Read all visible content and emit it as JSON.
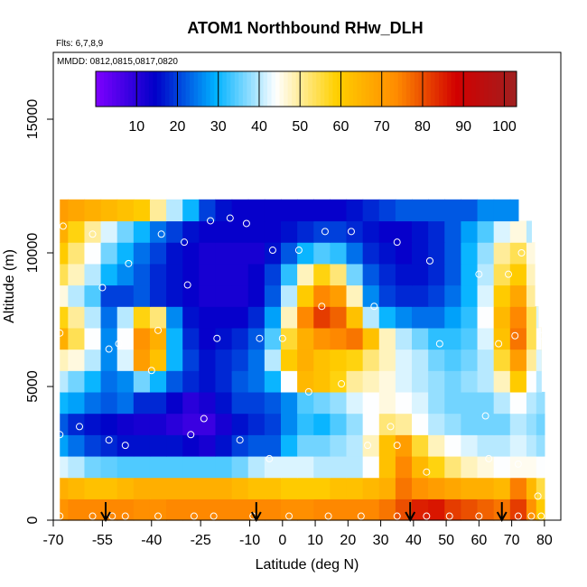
{
  "chart_data": {
    "type": "heatmap",
    "title": "ATOM1 Northbound RHw_DLH",
    "annotations": {
      "flights": "Flts: 6,7,8,9",
      "dates": "MMDD: 0812,0815,0817,0820"
    },
    "xlabel": "Latitude (deg N)",
    "ylabel": "Altitude (m)",
    "xlim": [
      -70,
      85
    ],
    "ylim": [
      0,
      17500
    ],
    "x_ticks": [
      -70,
      -55,
      -40,
      -25,
      -10,
      0,
      10,
      20,
      30,
      40,
      50,
      60,
      70,
      80
    ],
    "x_tick_labels": [
      "-70",
      "-55",
      "-40",
      "-25",
      "-10",
      "0",
      "10",
      "20",
      "30",
      "40",
      "50",
      "60",
      "70",
      "80"
    ],
    "y_ticks": [
      0,
      5000,
      10000,
      15000
    ],
    "y_tick_labels": [
      "0",
      "5000",
      "10000",
      "15000"
    ],
    "colorbar": {
      "range": [
        0,
        103
      ],
      "ticks": [
        10,
        20,
        30,
        40,
        50,
        60,
        70,
        80,
        90,
        100
      ],
      "tick_labels": [
        "10",
        "20",
        "30",
        "40",
        "50",
        "60",
        "70",
        "80",
        "90",
        "100"
      ],
      "colors": [
        "#7f00ff",
        "#0000c8",
        "#00b2ff",
        "#ffffff",
        "#ffd000",
        "#ff8c00",
        "#d20000",
        "#a02020"
      ]
    },
    "profile_markers_lat": [
      -54,
      -8,
      39,
      67
    ],
    "grid_lat": [
      -68,
      -63,
      -58,
      -53,
      -48,
      -43,
      -38,
      -33,
      -28,
      -23,
      -18,
      -13,
      -8,
      -3,
      2,
      7,
      12,
      17,
      22,
      27,
      32,
      37,
      42,
      47,
      52,
      57,
      62,
      67,
      72,
      77,
      80
    ],
    "grid_alt": [
      0,
      800,
      1600,
      2400,
      3200,
      4000,
      4800,
      5600,
      6400,
      7200,
      8000,
      8800,
      9600,
      10400,
      11200
    ],
    "cells": [
      [
        72,
        74,
        74,
        74,
        74,
        73,
        73,
        74,
        74,
        74,
        74,
        74,
        74,
        74,
        73,
        73,
        74,
        74,
        74,
        74,
        76,
        80,
        85,
        86,
        82,
        80,
        78,
        76,
        82,
        72,
        60
      ],
      [
        66,
        64,
        62,
        62,
        64,
        66,
        66,
        66,
        66,
        66,
        66,
        64,
        62,
        62,
        60,
        60,
        60,
        62,
        62,
        64,
        66,
        76,
        72,
        70,
        68,
        66,
        66,
        64,
        75,
        64,
        55
      ],
      [
        42,
        40,
        36,
        35,
        34,
        34,
        34,
        34,
        34,
        34,
        34,
        36,
        40,
        42,
        42,
        42,
        40,
        40,
        40,
        44,
        62,
        74,
        64,
        58,
        52,
        48,
        46,
        44,
        45,
        45,
        44
      ],
      [
        28,
        24,
        20,
        18,
        16,
        16,
        16,
        16,
        14,
        12,
        16,
        20,
        22,
        22,
        30,
        36,
        36,
        38,
        40,
        48,
        62,
        70,
        56,
        48,
        44,
        42,
        40,
        40,
        42,
        40,
        38
      ],
      [
        22,
        18,
        16,
        15,
        13,
        12,
        12,
        10,
        8,
        8,
        12,
        16,
        18,
        20,
        26,
        32,
        30,
        34,
        38,
        44,
        52,
        50,
        44,
        40,
        38,
        36,
        36,
        36,
        40,
        38,
        36
      ],
      [
        30,
        28,
        24,
        22,
        24,
        18,
        18,
        14,
        10,
        12,
        16,
        20,
        20,
        22,
        26,
        34,
        36,
        38,
        42,
        44,
        46,
        44,
        42,
        38,
        36,
        36,
        36,
        40,
        44,
        40,
        38
      ],
      [
        40,
        36,
        30,
        24,
        26,
        36,
        30,
        22,
        18,
        16,
        18,
        22,
        24,
        30,
        44,
        64,
        62,
        58,
        50,
        48,
        46,
        42,
        40,
        38,
        36,
        38,
        40,
        48,
        60,
        44,
        40
      ],
      [
        48,
        46,
        40,
        26,
        42,
        70,
        62,
        30,
        20,
        16,
        18,
        20,
        24,
        40,
        60,
        66,
        62,
        60,
        58,
        52,
        48,
        42,
        40,
        36,
        34,
        36,
        40,
        56,
        70,
        50,
        42
      ],
      [
        66,
        54,
        44,
        26,
        44,
        72,
        66,
        30,
        18,
        14,
        16,
        18,
        22,
        34,
        56,
        66,
        72,
        74,
        76,
        62,
        48,
        40,
        36,
        32,
        32,
        34,
        42,
        62,
        76,
        54,
        44
      ],
      [
        58,
        50,
        40,
        24,
        40,
        58,
        52,
        26,
        16,
        14,
        14,
        14,
        18,
        28,
        48,
        74,
        82,
        78,
        62,
        40,
        30,
        26,
        24,
        24,
        28,
        32,
        44,
        64,
        74,
        54,
        42
      ],
      [
        46,
        40,
        34,
        20,
        20,
        22,
        18,
        16,
        14,
        12,
        12,
        12,
        14,
        22,
        40,
        60,
        74,
        70,
        48,
        26,
        20,
        18,
        18,
        20,
        24,
        30,
        42,
        60,
        68,
        50,
        40
      ],
      [
        54,
        48,
        40,
        30,
        26,
        22,
        18,
        16,
        14,
        12,
        12,
        12,
        14,
        20,
        32,
        48,
        58,
        52,
        36,
        22,
        18,
        16,
        16,
        18,
        22,
        30,
        40,
        54,
        60,
        48,
        38
      ],
      [
        60,
        52,
        44,
        36,
        30,
        24,
        20,
        16,
        14,
        12,
        12,
        12,
        12,
        16,
        22,
        30,
        34,
        32,
        24,
        18,
        16,
        14,
        16,
        18,
        22,
        30,
        38,
        50,
        54,
        46,
        36
      ],
      [
        66,
        58,
        50,
        42,
        36,
        30,
        24,
        20,
        16,
        14,
        14,
        14,
        14,
        14,
        16,
        18,
        20,
        20,
        18,
        16,
        14,
        14,
        16,
        18,
        22,
        28,
        34,
        42,
        46,
        40,
        34
      ],
      [
        70,
        68,
        66,
        64,
        62,
        60,
        50,
        40,
        30,
        20,
        16,
        14,
        14,
        14,
        14,
        14,
        14,
        14,
        16,
        18,
        20,
        22,
        22,
        22,
        22,
        22,
        26,
        26,
        26,
        26,
        26
      ]
    ],
    "row_extent": [
      [
        -68,
        80
      ],
      [
        -68,
        80
      ],
      [
        -68,
        80
      ],
      [
        -68,
        80
      ],
      [
        -68,
        80
      ],
      [
        -68,
        80
      ],
      [
        -68,
        79
      ],
      [
        -68,
        79
      ],
      [
        -68,
        79
      ],
      [
        -68,
        78
      ],
      [
        -68,
        77
      ],
      [
        -68,
        77
      ],
      [
        -68,
        77
      ],
      [
        -68,
        76
      ],
      [
        -68,
        72
      ]
    ],
    "sample_points": [
      {
        "lat": -67,
        "alt": 11000
      },
      {
        "lat": -58,
        "alt": 10700
      },
      {
        "lat": -47,
        "alt": 9600
      },
      {
        "lat": -37,
        "alt": 10700
      },
      {
        "lat": -30,
        "alt": 10400
      },
      {
        "lat": -22,
        "alt": 11200
      },
      {
        "lat": -16,
        "alt": 11300
      },
      {
        "lat": -11,
        "alt": 11100
      },
      {
        "lat": -3,
        "alt": 10100
      },
      {
        "lat": 5,
        "alt": 10100
      },
      {
        "lat": 13,
        "alt": 10800
      },
      {
        "lat": 21,
        "alt": 10800
      },
      {
        "lat": 35,
        "alt": 10400
      },
      {
        "lat": 45,
        "alt": 9700
      },
      {
        "lat": 60,
        "alt": 9200
      },
      {
        "lat": 69,
        "alt": 9200
      },
      {
        "lat": 73,
        "alt": 10000
      },
      {
        "lat": -55,
        "alt": 8700
      },
      {
        "lat": -29,
        "alt": 8800
      },
      {
        "lat": 12,
        "alt": 8000
      },
      {
        "lat": 28,
        "alt": 8000
      },
      {
        "lat": -68,
        "alt": 7000
      },
      {
        "lat": -38,
        "alt": 7100
      },
      {
        "lat": -20,
        "alt": 6800
      },
      {
        "lat": -7,
        "alt": 6800
      },
      {
        "lat": 0,
        "alt": 6800
      },
      {
        "lat": -50,
        "alt": 6600
      },
      {
        "lat": -53,
        "alt": 6400
      },
      {
        "lat": -40,
        "alt": 5600
      },
      {
        "lat": 48,
        "alt": 6600
      },
      {
        "lat": 66,
        "alt": 6600
      },
      {
        "lat": 71,
        "alt": 6900
      },
      {
        "lat": 79,
        "alt": 6900
      },
      {
        "lat": 8,
        "alt": 4800
      },
      {
        "lat": 18,
        "alt": 5100
      },
      {
        "lat": 62,
        "alt": 3900
      },
      {
        "lat": -24,
        "alt": 3800
      },
      {
        "lat": -62,
        "alt": 3500
      },
      {
        "lat": 33,
        "alt": 3500
      },
      {
        "lat": -68,
        "alt": 3200
      },
      {
        "lat": -28,
        "alt": 3200
      },
      {
        "lat": -53,
        "alt": 3000
      },
      {
        "lat": -48,
        "alt": 2800
      },
      {
        "lat": -13,
        "alt": 3000
      },
      {
        "lat": 26,
        "alt": 2800
      },
      {
        "lat": 35,
        "alt": 2800
      },
      {
        "lat": -4,
        "alt": 2300
      },
      {
        "lat": 63,
        "alt": 2300
      },
      {
        "lat": 72,
        "alt": 2100
      },
      {
        "lat": 44,
        "alt": 1800
      },
      {
        "lat": 78,
        "alt": 900
      },
      {
        "lat": -68,
        "alt": 150
      },
      {
        "lat": -58,
        "alt": 150
      },
      {
        "lat": -52,
        "alt": 150
      },
      {
        "lat": -48,
        "alt": 150
      },
      {
        "lat": -38,
        "alt": 150
      },
      {
        "lat": -27,
        "alt": 150
      },
      {
        "lat": -21,
        "alt": 150
      },
      {
        "lat": -9,
        "alt": 150
      },
      {
        "lat": 2,
        "alt": 150
      },
      {
        "lat": 14,
        "alt": 150
      },
      {
        "lat": 24,
        "alt": 150
      },
      {
        "lat": 35,
        "alt": 150
      },
      {
        "lat": 44,
        "alt": 150
      },
      {
        "lat": 51,
        "alt": 150
      },
      {
        "lat": 60,
        "alt": 150
      },
      {
        "lat": 72,
        "alt": 150
      },
      {
        "lat": 76,
        "alt": 150
      },
      {
        "lat": 79,
        "alt": 150
      }
    ]
  }
}
